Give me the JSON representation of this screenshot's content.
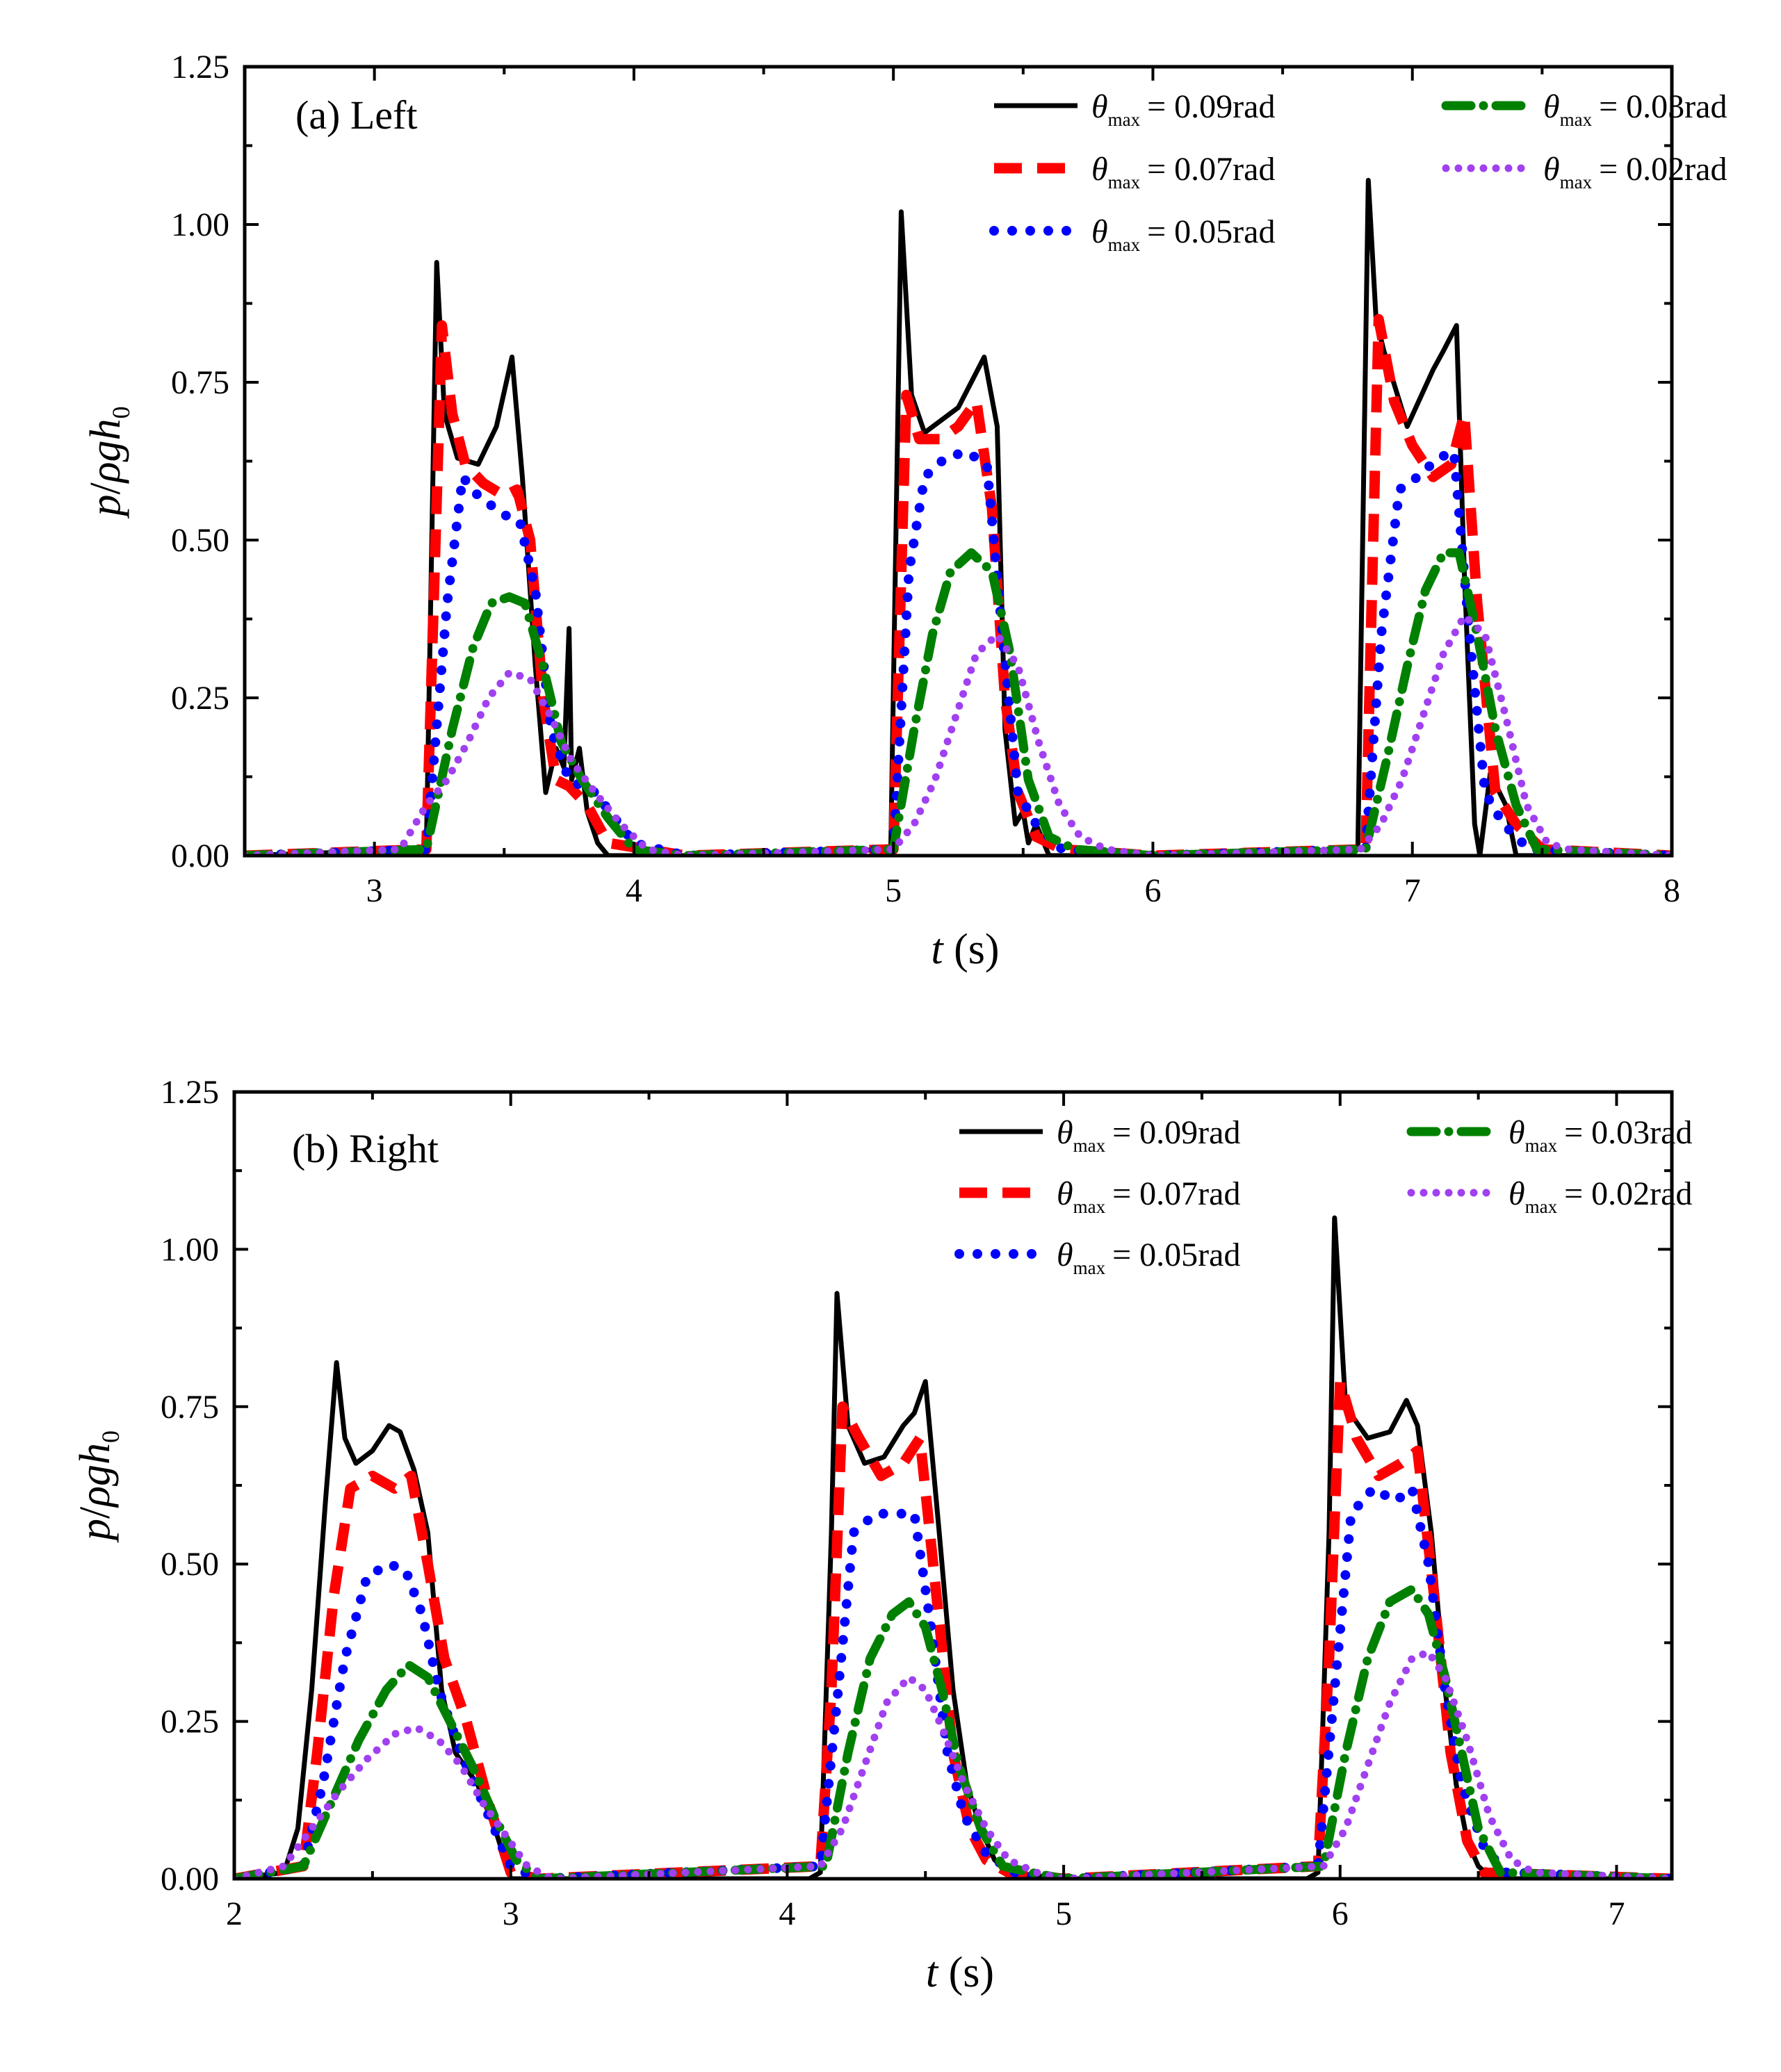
{
  "chart_data": [
    {
      "type": "line",
      "panel_label": "(a) Left",
      "xlabel": {
        "var": "t",
        "unit": " (s)"
      },
      "ylabel": {
        "p": "p",
        "slash": "/",
        "rho": "ρ",
        "g": "g",
        "h": "h",
        "sub": "0"
      },
      "xlim": [
        2.5,
        8
      ],
      "ylim": [
        0,
        1.25
      ],
      "xticks": [
        3,
        4,
        5,
        6,
        7,
        8
      ],
      "yticks": [
        "0.00",
        "0.25",
        "0.50",
        "0.75",
        "1.00",
        "1.25"
      ],
      "legend": {
        "symbol": "θ",
        "sub": "max",
        "placement": "top-right"
      },
      "series": [
        {
          "name": "= 0.09rad",
          "color": "#000000",
          "style": "solid",
          "x": [
            2.5,
            3.2,
            3.24,
            3.27,
            3.32,
            3.4,
            3.47,
            3.53,
            3.57,
            3.62,
            3.66,
            3.7,
            3.73,
            3.75,
            3.76,
            3.79,
            3.82,
            3.86,
            3.9,
            4.2,
            4.99,
            5.03,
            5.07,
            5.12,
            5.25,
            5.35,
            5.4,
            5.43,
            5.47,
            5.5,
            5.52,
            5.55,
            5.6,
            6.0,
            6.79,
            6.83,
            6.86,
            6.89,
            6.98,
            7.08,
            7.12,
            7.17,
            7.2,
            7.24,
            7.26,
            7.3,
            7.36,
            7.4,
            8.0
          ],
          "y": [
            0,
            0.01,
            0.94,
            0.7,
            0.63,
            0.62,
            0.68,
            0.79,
            0.6,
            0.3,
            0.1,
            0.17,
            0.14,
            0.36,
            0.12,
            0.17,
            0.07,
            0.02,
            0,
            0,
            0.01,
            1.02,
            0.73,
            0.67,
            0.71,
            0.79,
            0.68,
            0.2,
            0.05,
            0.07,
            0.02,
            0.05,
            0,
            0,
            0.01,
            1.07,
            0.85,
            0.8,
            0.68,
            0.77,
            0.8,
            0.84,
            0.45,
            0.05,
            0.0,
            0.13,
            0.08,
            0.0,
            0
          ]
        },
        {
          "name": "= 0.07rad",
          "color": "#ff0000",
          "style": "dash",
          "x": [
            2.5,
            3.2,
            3.26,
            3.3,
            3.35,
            3.42,
            3.5,
            3.55,
            3.6,
            3.65,
            3.7,
            3.75,
            3.82,
            3.9,
            4.2,
            5.0,
            5.05,
            5.1,
            5.18,
            5.25,
            5.32,
            5.38,
            5.43,
            5.48,
            5.55,
            5.65,
            6.0,
            6.82,
            6.87,
            6.93,
            7.0,
            7.08,
            7.15,
            7.2,
            7.25,
            7.32,
            7.4,
            7.5,
            8.0
          ],
          "y": [
            0,
            0.01,
            0.84,
            0.7,
            0.62,
            0.59,
            0.57,
            0.58,
            0.5,
            0.25,
            0.12,
            0.11,
            0.08,
            0.02,
            0,
            0.01,
            0.73,
            0.66,
            0.66,
            0.68,
            0.72,
            0.55,
            0.25,
            0.1,
            0.03,
            0.01,
            0,
            0.01,
            0.85,
            0.72,
            0.65,
            0.6,
            0.62,
            0.7,
            0.4,
            0.1,
            0.05,
            0.01,
            0
          ]
        },
        {
          "name": "= 0.05rad",
          "color": "#0000ff",
          "style": "dot",
          "x": [
            2.5,
            3.2,
            3.28,
            3.34,
            3.4,
            3.5,
            3.56,
            3.62,
            3.68,
            3.75,
            3.85,
            4.0,
            4.2,
            5.0,
            5.06,
            5.12,
            5.2,
            5.28,
            5.36,
            5.42,
            5.48,
            5.55,
            5.65,
            6.0,
            6.82,
            6.88,
            6.95,
            7.02,
            7.1,
            7.16,
            7.22,
            7.28,
            7.35,
            7.45,
            8.0
          ],
          "y": [
            0,
            0.01,
            0.4,
            0.6,
            0.57,
            0.54,
            0.53,
            0.42,
            0.2,
            0.12,
            0.1,
            0.02,
            0,
            0.01,
            0.45,
            0.6,
            0.63,
            0.64,
            0.62,
            0.35,
            0.1,
            0.05,
            0.01,
            0,
            0.01,
            0.35,
            0.58,
            0.6,
            0.63,
            0.64,
            0.35,
            0.1,
            0.05,
            0.01,
            0
          ]
        },
        {
          "name": "= 0.03rad",
          "color": "#008000",
          "style": "dashdot",
          "x": [
            2.5,
            3.2,
            3.3,
            3.38,
            3.45,
            3.52,
            3.58,
            3.65,
            3.72,
            3.8,
            3.9,
            4.0,
            4.2,
            5.0,
            5.08,
            5.15,
            5.22,
            5.3,
            5.38,
            5.45,
            5.52,
            5.6,
            5.7,
            6.0,
            6.82,
            6.9,
            6.98,
            7.05,
            7.12,
            7.18,
            7.25,
            7.32,
            7.4,
            7.48,
            8.0
          ],
          "y": [
            0,
            0.01,
            0.2,
            0.33,
            0.4,
            0.41,
            0.4,
            0.3,
            0.18,
            0.12,
            0.06,
            0.01,
            0,
            0.01,
            0.2,
            0.35,
            0.45,
            0.48,
            0.45,
            0.32,
            0.12,
            0.03,
            0.01,
            0,
            0.01,
            0.15,
            0.3,
            0.42,
            0.48,
            0.48,
            0.35,
            0.2,
            0.08,
            0.01,
            0
          ]
        },
        {
          "name": "= 0.02rad",
          "color": "#a040f0",
          "style": "shortdot",
          "x": [
            2.5,
            3.1,
            3.2,
            3.28,
            3.36,
            3.44,
            3.52,
            3.6,
            3.68,
            3.76,
            3.85,
            3.95,
            4.05,
            4.2,
            5.0,
            5.08,
            5.16,
            5.24,
            5.32,
            5.4,
            5.48,
            5.56,
            5.64,
            5.72,
            5.82,
            6.0,
            6.8,
            6.88,
            6.96,
            7.04,
            7.12,
            7.2,
            7.28,
            7.36,
            7.44,
            7.52,
            7.6,
            8.0
          ],
          "y": [
            0,
            0.01,
            0.08,
            0.12,
            0.18,
            0.25,
            0.29,
            0.28,
            0.22,
            0.15,
            0.1,
            0.05,
            0.01,
            0,
            0.01,
            0.05,
            0.12,
            0.22,
            0.32,
            0.35,
            0.3,
            0.18,
            0.08,
            0.03,
            0.01,
            0,
            0.01,
            0.05,
            0.12,
            0.22,
            0.32,
            0.38,
            0.35,
            0.22,
            0.08,
            0.02,
            0.01,
            0
          ]
        }
      ]
    },
    {
      "type": "line",
      "panel_label": "(b) Right",
      "xlabel": {
        "var": "t",
        "unit": " (s)"
      },
      "ylabel": {
        "p": "p",
        "slash": "/",
        "rho": "ρ",
        "g": "g",
        "h": "h",
        "sub": "0"
      },
      "xlim": [
        2,
        7.2
      ],
      "ylim": [
        0,
        1.25
      ],
      "xticks": [
        2,
        3,
        4,
        5,
        6,
        7
      ],
      "yticks": [
        "0.00",
        "0.25",
        "0.50",
        "0.75",
        "1.00",
        "1.25"
      ],
      "legend": {
        "symbol": "θ",
        "sub": "max",
        "placement": "top-right"
      },
      "series": [
        {
          "name": "= 0.09rad",
          "color": "#000000",
          "style": "solid",
          "x": [
            2.0,
            2.18,
            2.23,
            2.28,
            2.33,
            2.37,
            2.4,
            2.44,
            2.5,
            2.56,
            2.6,
            2.65,
            2.7,
            2.75,
            2.8,
            2.88,
            2.95,
            3.0,
            3.1,
            4.08,
            4.12,
            4.16,
            4.18,
            4.22,
            4.28,
            4.35,
            4.42,
            4.46,
            4.5,
            4.55,
            4.6,
            4.65,
            4.7,
            4.75,
            4.8,
            5.0,
            5.88,
            5.92,
            5.96,
            5.98,
            6.02,
            6.1,
            6.18,
            6.24,
            6.28,
            6.33,
            6.38,
            6.42,
            6.46,
            6.5,
            6.55,
            7.2
          ],
          "y": [
            0,
            0.01,
            0.08,
            0.3,
            0.6,
            0.82,
            0.7,
            0.66,
            0.68,
            0.72,
            0.71,
            0.65,
            0.55,
            0.3,
            0.2,
            0.15,
            0.07,
            0.0,
            0,
            0,
            0.01,
            0.55,
            0.93,
            0.72,
            0.66,
            0.67,
            0.72,
            0.74,
            0.79,
            0.55,
            0.3,
            0.15,
            0.08,
            0.03,
            0.01,
            0,
            0,
            0.01,
            0.55,
            1.05,
            0.75,
            0.7,
            0.71,
            0.76,
            0.72,
            0.55,
            0.3,
            0.15,
            0.06,
            0.02,
            0,
            0
          ]
        },
        {
          "name": "= 0.07rad",
          "color": "#ff0000",
          "style": "dash",
          "x": [
            2.0,
            2.25,
            2.3,
            2.36,
            2.42,
            2.5,
            2.58,
            2.64,
            2.7,
            2.76,
            2.84,
            2.92,
            3.0,
            3.1,
            4.12,
            4.16,
            4.2,
            4.26,
            4.34,
            4.42,
            4.48,
            4.54,
            4.6,
            4.66,
            4.72,
            4.8,
            5.0,
            5.92,
            5.96,
            6.0,
            6.06,
            6.14,
            6.22,
            6.28,
            6.34,
            6.4,
            6.46,
            6.52,
            7.2
          ],
          "y": [
            0,
            0.02,
            0.2,
            0.45,
            0.62,
            0.64,
            0.62,
            0.64,
            0.5,
            0.35,
            0.25,
            0.12,
            0.01,
            0,
            0.02,
            0.3,
            0.75,
            0.7,
            0.64,
            0.66,
            0.7,
            0.45,
            0.2,
            0.08,
            0.03,
            0.01,
            0,
            0.02,
            0.35,
            0.79,
            0.7,
            0.64,
            0.66,
            0.68,
            0.45,
            0.2,
            0.06,
            0.01,
            0
          ]
        },
        {
          "name": "= 0.05rad",
          "color": "#0000ff",
          "style": "dot",
          "x": [
            2.0,
            2.25,
            2.32,
            2.4,
            2.48,
            2.56,
            2.62,
            2.68,
            2.74,
            2.82,
            2.9,
            3.0,
            3.1,
            4.12,
            4.18,
            4.24,
            4.32,
            4.4,
            4.46,
            4.52,
            4.58,
            4.64,
            4.72,
            4.82,
            5.0,
            5.92,
            5.98,
            6.04,
            6.12,
            6.2,
            6.26,
            6.32,
            6.38,
            6.44,
            6.52,
            6.6,
            7.2
          ],
          "y": [
            0,
            0.02,
            0.15,
            0.35,
            0.48,
            0.5,
            0.49,
            0.42,
            0.3,
            0.2,
            0.12,
            0.02,
            0,
            0.02,
            0.28,
            0.55,
            0.58,
            0.58,
            0.58,
            0.4,
            0.2,
            0.1,
            0.04,
            0.01,
            0,
            0.02,
            0.3,
            0.58,
            0.62,
            0.6,
            0.62,
            0.5,
            0.3,
            0.15,
            0.05,
            0.01,
            0
          ]
        },
        {
          "name": "= 0.03rad",
          "color": "#008000",
          "style": "dashdot",
          "x": [
            2.0,
            2.25,
            2.35,
            2.45,
            2.55,
            2.63,
            2.7,
            2.78,
            2.86,
            2.94,
            3.02,
            3.1,
            4.14,
            4.22,
            4.3,
            4.38,
            4.44,
            4.5,
            4.56,
            4.62,
            4.7,
            4.78,
            4.88,
            5.0,
            5.94,
            6.02,
            6.1,
            6.18,
            6.26,
            6.32,
            6.38,
            6.44,
            6.5,
            6.58,
            7.2
          ],
          "y": [
            0,
            0.02,
            0.12,
            0.22,
            0.3,
            0.34,
            0.32,
            0.25,
            0.18,
            0.1,
            0.03,
            0,
            0.02,
            0.2,
            0.35,
            0.42,
            0.44,
            0.4,
            0.3,
            0.18,
            0.08,
            0.02,
            0.01,
            0,
            0.02,
            0.2,
            0.35,
            0.44,
            0.46,
            0.42,
            0.32,
            0.2,
            0.08,
            0.01,
            0
          ]
        },
        {
          "name": "= 0.02rad",
          "color": "#a040f0",
          "style": "shortdot",
          "x": [
            2.0,
            2.18,
            2.28,
            2.38,
            2.48,
            2.58,
            2.66,
            2.74,
            2.82,
            2.9,
            2.98,
            3.06,
            3.15,
            4.12,
            4.2,
            4.28,
            4.36,
            4.44,
            4.5,
            4.56,
            4.64,
            4.72,
            4.8,
            4.9,
            5.0,
            5.94,
            6.02,
            6.1,
            6.18,
            6.26,
            6.32,
            6.38,
            6.46,
            6.54,
            6.62,
            6.7,
            7.2
          ],
          "y": [
            0,
            0.02,
            0.08,
            0.14,
            0.19,
            0.23,
            0.24,
            0.22,
            0.18,
            0.12,
            0.07,
            0.02,
            0,
            0.02,
            0.08,
            0.18,
            0.28,
            0.32,
            0.3,
            0.24,
            0.15,
            0.08,
            0.03,
            0.01,
            0,
            0.02,
            0.08,
            0.18,
            0.28,
            0.35,
            0.36,
            0.32,
            0.22,
            0.1,
            0.03,
            0.01,
            0
          ]
        }
      ]
    }
  ]
}
